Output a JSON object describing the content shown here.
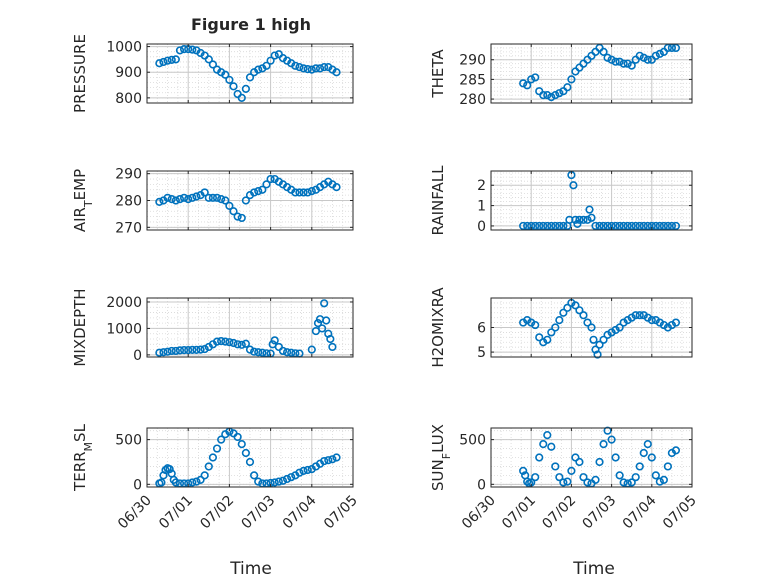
{
  "figure": {
    "title": "Figure 1 high",
    "xlabel": "Time",
    "x_ticks": [
      "06/30",
      "07/01",
      "07/02",
      "07/03",
      "07/04",
      "07/05"
    ]
  },
  "colors": {
    "marker": "#0072BD",
    "axes": "#262626",
    "grid": "#c8c8c8"
  },
  "chart_data": [
    {
      "type": "scatter",
      "ylabel": "PRESSURE",
      "ylim": [
        780,
        1010
      ],
      "yticks": [
        800,
        900,
        1000
      ],
      "xlim": [
        0,
        5
      ],
      "grid": true,
      "marker": "open-circle",
      "x": [
        0.3,
        0.4,
        0.5,
        0.6,
        0.7,
        0.8,
        0.9,
        1.0,
        1.1,
        1.2,
        1.3,
        1.4,
        1.5,
        1.6,
        1.7,
        1.8,
        1.9,
        2.0,
        2.1,
        2.2,
        2.3,
        2.4,
        2.5,
        2.6,
        2.7,
        2.8,
        2.9,
        3.0,
        3.1,
        3.2,
        3.3,
        3.4,
        3.5,
        3.6,
        3.7,
        3.8,
        3.9,
        4.0,
        4.1,
        4.2,
        4.3,
        4.4,
        4.5,
        4.6
      ],
      "y": [
        935,
        940,
        945,
        948,
        950,
        985,
        990,
        990,
        988,
        985,
        975,
        965,
        950,
        930,
        910,
        900,
        890,
        870,
        845,
        815,
        800,
        835,
        880,
        900,
        910,
        915,
        925,
        945,
        965,
        970,
        955,
        945,
        935,
        925,
        920,
        915,
        912,
        910,
        915,
        915,
        920,
        920,
        910,
        900
      ]
    },
    {
      "type": "scatter",
      "ylabel": "THETA",
      "ylim": [
        279,
        294
      ],
      "yticks": [
        280,
        285,
        290
      ],
      "xlim": [
        0,
        5
      ],
      "grid": true,
      "marker": "open-circle",
      "x": [
        0.8,
        0.9,
        1.0,
        1.1,
        1.2,
        1.3,
        1.4,
        1.5,
        1.6,
        1.7,
        1.8,
        1.9,
        2.0,
        2.1,
        2.2,
        2.3,
        2.4,
        2.5,
        2.6,
        2.7,
        2.8,
        2.9,
        3.0,
        3.1,
        3.2,
        3.3,
        3.4,
        3.5,
        3.6,
        3.7,
        3.8,
        3.9,
        4.0,
        4.1,
        4.2,
        4.3,
        4.4,
        4.5,
        4.6
      ],
      "y": [
        284,
        283.5,
        285,
        285.5,
        282,
        281,
        281,
        280.5,
        281,
        281.5,
        282,
        283,
        285,
        287,
        288,
        289,
        290,
        291,
        292,
        293,
        292,
        290.5,
        290,
        289.5,
        289.5,
        289,
        289,
        288.5,
        290,
        291,
        290.5,
        290,
        290,
        291,
        291.5,
        292,
        293,
        293,
        293
      ]
    },
    {
      "type": "scatter",
      "ylabel": "AIR_TEMP",
      "ylim": [
        269,
        291
      ],
      "yticks": [
        270,
        280,
        290
      ],
      "xlim": [
        0,
        5
      ],
      "grid": true,
      "marker": "open-circle",
      "x": [
        0.3,
        0.4,
        0.5,
        0.6,
        0.7,
        0.8,
        0.9,
        1.0,
        1.1,
        1.2,
        1.3,
        1.4,
        1.5,
        1.6,
        1.7,
        1.8,
        1.9,
        2.0,
        2.1,
        2.2,
        2.3,
        2.4,
        2.5,
        2.6,
        2.7,
        2.8,
        2.9,
        3.0,
        3.1,
        3.2,
        3.3,
        3.4,
        3.5,
        3.6,
        3.7,
        3.8,
        3.9,
        4.0,
        4.1,
        4.2,
        4.3,
        4.4,
        4.5,
        4.6
      ],
      "y": [
        279.5,
        280,
        281,
        280.5,
        280,
        280.5,
        281,
        280.5,
        281,
        281.5,
        282,
        283,
        281,
        281,
        281,
        280.5,
        280,
        278,
        276,
        274,
        273.5,
        280,
        282,
        283,
        283.5,
        284,
        286,
        288,
        288,
        287,
        286,
        285,
        284,
        283,
        283,
        283,
        283,
        283.5,
        284,
        285,
        286,
        287,
        286,
        285
      ]
    },
    {
      "type": "scatter",
      "ylabel": "RAINFALL",
      "ylim": [
        -0.2,
        2.7
      ],
      "yticks": [
        0,
        1,
        2
      ],
      "xlim": [
        0,
        5
      ],
      "grid": true,
      "marker": "open-circle",
      "x": [
        0.8,
        0.9,
        1.0,
        1.1,
        1.2,
        1.3,
        1.4,
        1.5,
        1.6,
        1.7,
        1.8,
        1.9,
        1.95,
        2.0,
        2.05,
        2.1,
        2.15,
        2.2,
        2.3,
        2.4,
        2.45,
        2.5,
        2.6,
        2.7,
        2.8,
        2.9,
        3.0,
        3.1,
        3.2,
        3.3,
        3.4,
        3.5,
        3.6,
        3.7,
        3.8,
        3.9,
        4.0,
        4.1,
        4.2,
        4.3,
        4.4,
        4.5,
        4.6
      ],
      "y": [
        0,
        0,
        0,
        0,
        0,
        0,
        0,
        0,
        0,
        0,
        0,
        0,
        0.3,
        2.5,
        2.0,
        0.3,
        0.1,
        0.3,
        0.3,
        0.3,
        0.8,
        0.4,
        0,
        0,
        0,
        0,
        0,
        0,
        0,
        0,
        0,
        0,
        0,
        0,
        0,
        0,
        0,
        0,
        0,
        0,
        0,
        0,
        0
      ]
    },
    {
      "type": "scatter",
      "ylabel": "MIXDEPTH",
      "ylim": [
        -80,
        2150
      ],
      "yticks": [
        0,
        1000,
        2000
      ],
      "xlim": [
        0,
        5
      ],
      "grid": true,
      "marker": "open-circle",
      "x": [
        0.3,
        0.4,
        0.5,
        0.6,
        0.7,
        0.8,
        0.9,
        1.0,
        1.1,
        1.2,
        1.3,
        1.4,
        1.5,
        1.6,
        1.7,
        1.8,
        1.9,
        2.0,
        2.1,
        2.2,
        2.3,
        2.4,
        2.5,
        2.6,
        2.7,
        2.8,
        2.9,
        3.0,
        3.05,
        3.1,
        3.2,
        3.3,
        3.4,
        3.5,
        3.6,
        3.7,
        4.0,
        4.1,
        4.15,
        4.2,
        4.25,
        4.3,
        4.35,
        4.4,
        4.45,
        4.5
      ],
      "y": [
        80,
        100,
        120,
        150,
        150,
        170,
        180,
        180,
        190,
        190,
        200,
        220,
        300,
        400,
        500,
        520,
        500,
        480,
        450,
        400,
        380,
        420,
        200,
        120,
        100,
        80,
        60,
        50,
        400,
        550,
        300,
        150,
        100,
        80,
        60,
        50,
        200,
        900,
        1200,
        1350,
        1000,
        1950,
        1300,
        800,
        600,
        300
      ]
    },
    {
      "type": "scatter",
      "ylabel": "H2OMIXRA",
      "ylim": [
        4.8,
        7.2
      ],
      "yticks": [
        5,
        6
      ],
      "xlim": [
        0,
        5
      ],
      "grid": true,
      "marker": "open-circle",
      "x": [
        0.8,
        0.9,
        1.0,
        1.1,
        1.2,
        1.3,
        1.4,
        1.5,
        1.6,
        1.7,
        1.8,
        1.9,
        2.0,
        2.1,
        2.2,
        2.3,
        2.4,
        2.5,
        2.55,
        2.6,
        2.65,
        2.7,
        2.8,
        2.9,
        3.0,
        3.1,
        3.2,
        3.3,
        3.4,
        3.5,
        3.6,
        3.7,
        3.8,
        3.9,
        4.0,
        4.1,
        4.2,
        4.3,
        4.4,
        4.5,
        4.6
      ],
      "y": [
        6.2,
        6.3,
        6.2,
        6.1,
        5.6,
        5.4,
        5.5,
        5.8,
        6.0,
        6.3,
        6.6,
        6.8,
        7.0,
        6.9,
        6.7,
        6.5,
        6.2,
        6.0,
        5.5,
        5.1,
        4.9,
        5.3,
        5.5,
        5.7,
        5.8,
        5.9,
        6.0,
        6.2,
        6.3,
        6.4,
        6.5,
        6.5,
        6.5,
        6.4,
        6.3,
        6.3,
        6.2,
        6.1,
        6.0,
        6.1,
        6.2
      ]
    },
    {
      "type": "scatter",
      "ylabel": "TERR_MSL",
      "ylim": [
        -30,
        630
      ],
      "yticks": [
        0,
        500
      ],
      "xlim": [
        0,
        5
      ],
      "grid": true,
      "marker": "open-circle",
      "x": [
        0.3,
        0.35,
        0.4,
        0.45,
        0.5,
        0.55,
        0.6,
        0.65,
        0.7,
        0.8,
        0.9,
        1.0,
        1.1,
        1.2,
        1.3,
        1.4,
        1.5,
        1.6,
        1.7,
        1.8,
        1.9,
        2.0,
        2.1,
        2.2,
        2.3,
        2.4,
        2.5,
        2.6,
        2.7,
        2.8,
        2.9,
        3.0,
        3.1,
        3.2,
        3.3,
        3.4,
        3.5,
        3.6,
        3.7,
        3.8,
        3.9,
        4.0,
        4.1,
        4.2,
        4.3,
        4.4,
        4.5,
        4.6
      ],
      "y": [
        10,
        20,
        100,
        160,
        180,
        170,
        120,
        50,
        20,
        10,
        10,
        10,
        20,
        30,
        50,
        100,
        200,
        300,
        400,
        500,
        560,
        590,
        570,
        530,
        450,
        350,
        250,
        100,
        30,
        10,
        10,
        15,
        20,
        30,
        40,
        60,
        80,
        100,
        130,
        150,
        160,
        170,
        200,
        230,
        260,
        270,
        280,
        300
      ]
    },
    {
      "type": "scatter",
      "ylabel": "SUN_FLUX",
      "ylim": [
        -30,
        630
      ],
      "yticks": [
        0,
        500
      ],
      "xlim": [
        0,
        5
      ],
      "grid": true,
      "marker": "open-circle",
      "x": [
        0.8,
        0.85,
        0.9,
        0.95,
        1.0,
        1.1,
        1.2,
        1.3,
        1.4,
        1.5,
        1.6,
        1.7,
        1.8,
        1.9,
        2.0,
        2.1,
        2.2,
        2.3,
        2.4,
        2.5,
        2.6,
        2.7,
        2.8,
        2.9,
        3.0,
        3.1,
        3.2,
        3.3,
        3.4,
        3.5,
        3.6,
        3.7,
        3.8,
        3.9,
        4.0,
        4.1,
        4.2,
        4.3,
        4.4,
        4.5,
        4.6
      ],
      "y": [
        150,
        100,
        30,
        10,
        20,
        80,
        300,
        450,
        550,
        420,
        200,
        80,
        20,
        30,
        150,
        300,
        250,
        80,
        20,
        10,
        50,
        250,
        450,
        600,
        500,
        300,
        100,
        20,
        10,
        20,
        80,
        200,
        350,
        450,
        300,
        100,
        30,
        50,
        200,
        350,
        380
      ]
    }
  ]
}
